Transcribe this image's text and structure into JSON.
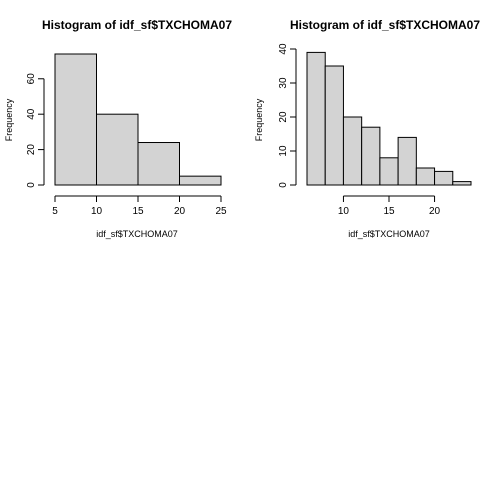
{
  "chart_data": [
    {
      "type": "bar",
      "title": "Histogram of idf_sf$TXCHOMA07",
      "xlabel": "idf_sf$TXCHOMA07",
      "ylabel": "Frequency",
      "bins": [
        [
          5,
          10
        ],
        [
          10,
          15
        ],
        [
          15,
          20
        ],
        [
          20,
          25
        ]
      ],
      "values": [
        74,
        40,
        24,
        5
      ],
      "xlim": [
        5,
        25
      ],
      "ylim": [
        0,
        74
      ],
      "xticks": [
        5,
        10,
        15,
        20,
        25
      ],
      "yticks": [
        0,
        20,
        40,
        60
      ],
      "grid": false
    },
    {
      "type": "bar",
      "title": "Histogram of idf_sf$TXCHOMA07",
      "xlabel": "idf_sf$TXCHOMA07",
      "ylabel": "Frequency",
      "bins": [
        [
          6,
          8
        ],
        [
          8,
          10
        ],
        [
          10,
          12
        ],
        [
          12,
          14
        ],
        [
          14,
          16
        ],
        [
          16,
          18
        ],
        [
          18,
          20
        ],
        [
          20,
          22
        ],
        [
          22,
          24
        ]
      ],
      "values": [
        39,
        35,
        20,
        17,
        8,
        14,
        5,
        4,
        1
      ],
      "xlim": [
        6,
        24
      ],
      "ylim": [
        0,
        40
      ],
      "xticks": [
        10,
        15,
        20
      ],
      "yticks": [
        0,
        10,
        20,
        30,
        40
      ],
      "grid": false
    }
  ]
}
